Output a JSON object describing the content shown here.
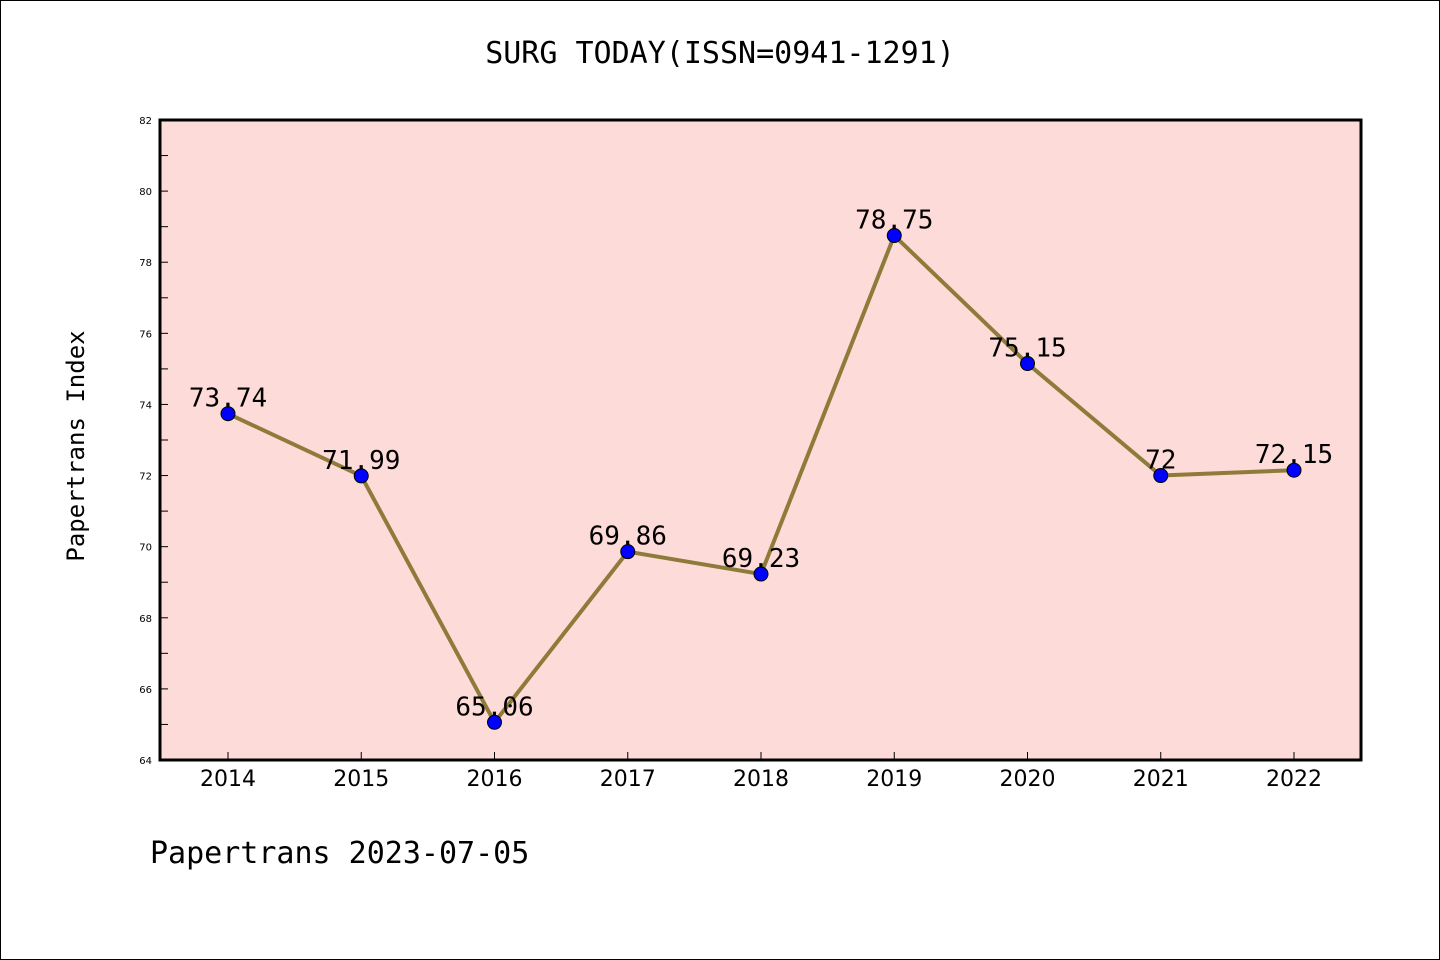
{
  "chart_data": {
    "type": "line",
    "title": "SURG TODAY(ISSN=0941-1291)",
    "xlabel": "",
    "ylabel": "Papertrans Index",
    "categories": [
      "2014",
      "2015",
      "2016",
      "2017",
      "2018",
      "2019",
      "2020",
      "2021",
      "2022"
    ],
    "values": [
      73.74,
      71.99,
      65.06,
      69.86,
      69.23,
      78.75,
      75.15,
      72,
      72.15
    ],
    "data_labels": [
      "73.74",
      "71.99",
      "65.06",
      "69.86",
      "69.23",
      "78.75",
      "75.15",
      "72",
      "72.15"
    ],
    "ylim": [
      64,
      82
    ],
    "yticks": [
      64,
      66,
      68,
      70,
      72,
      74,
      76,
      78,
      80,
      82
    ],
    "grid": false,
    "colors": {
      "plot_background": "#fddbd9",
      "line": "#8e7b3a",
      "marker": "#0000ff"
    }
  },
  "footer": "Papertrans 2023-07-05"
}
